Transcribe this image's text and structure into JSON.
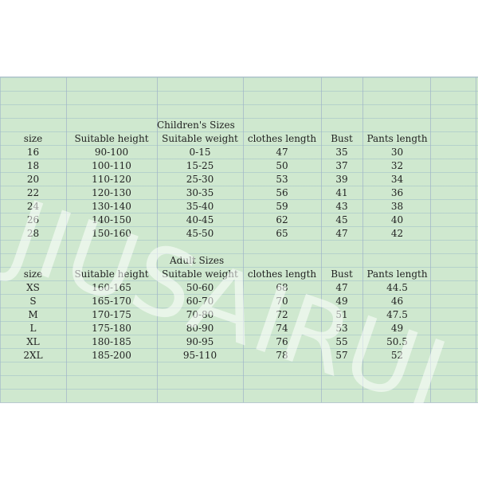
{
  "children": {
    "title": "Children's Sizes",
    "headers": [
      "size",
      "Suitable height",
      "Suitable weight",
      "clothes length",
      "Bust",
      "Pants length"
    ],
    "rows": [
      [
        "16",
        "90-100",
        "0-15",
        "47",
        "35",
        "30"
      ],
      [
        "18",
        "100-110",
        "15-25",
        "50",
        "37",
        "32"
      ],
      [
        "20",
        "110-120",
        "25-30",
        "53",
        "39",
        "34"
      ],
      [
        "22",
        "120-130",
        "30-35",
        "56",
        "41",
        "36"
      ],
      [
        "24",
        "130-140",
        "35-40",
        "59",
        "43",
        "38"
      ],
      [
        "26",
        "140-150",
        "40-45",
        "62",
        "45",
        "40"
      ],
      [
        "28",
        "150-160",
        "45-50",
        "65",
        "47",
        "42"
      ]
    ]
  },
  "adult": {
    "title": "Adult Sizes",
    "headers": [
      "size",
      "Suitable height",
      "Suitable weight",
      "clothes length",
      "Bust",
      "Pants length"
    ],
    "rows": [
      [
        "XS",
        "160-165",
        "50-60",
        "68",
        "47",
        "44.5"
      ],
      [
        "S",
        "165-170",
        "60-70",
        "70",
        "49",
        "46"
      ],
      [
        "M",
        "170-175",
        "70-80",
        "72",
        "51",
        "47.5"
      ],
      [
        "L",
        "175-180",
        "80-90",
        "74",
        "53",
        "49"
      ],
      [
        "XL",
        "180-185",
        "90-95",
        "76",
        "55",
        "50.5"
      ],
      [
        "2XL",
        "185-200",
        "95-110",
        "78",
        "57",
        "52"
      ]
    ]
  },
  "watermark": "JIUSAIRUI",
  "colors": {
    "sheet_bg": "#cfe8cf",
    "gridline": "#a0b4c8"
  }
}
